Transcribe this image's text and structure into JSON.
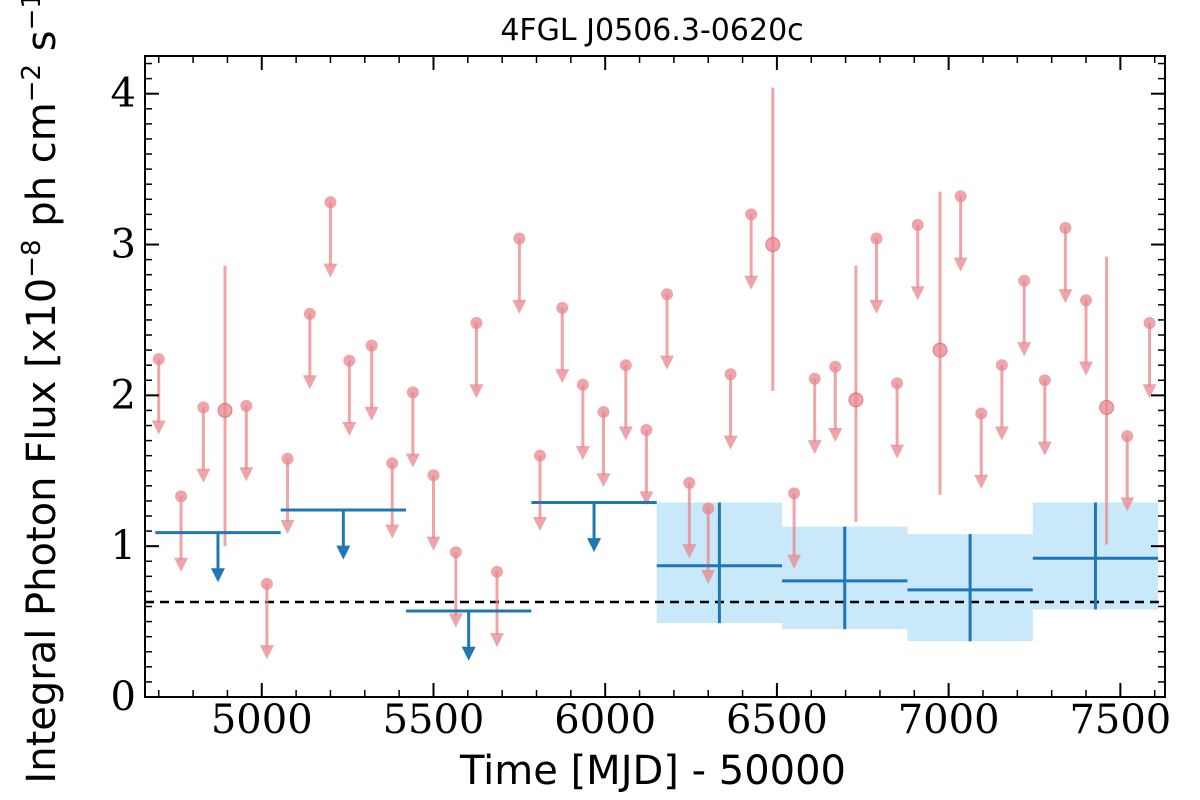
{
  "chart_data": {
    "type": "scatter",
    "title": "4FGL J0506.3-0620c",
    "xlabel": "Time [MJD] - 50000",
    "ylabel": "Integral Photon Flux [x10^-8 ph cm^-2 s^-1]",
    "ylabel_parts": {
      "main": "Integral Photon Flux [x10",
      "exp1": "−8",
      "mid": " ph cm",
      "exp2": "−2",
      "unit_s": " s",
      "exp3": "−1",
      "end": "]"
    },
    "xlim": [
      4660,
      7630
    ],
    "ylim": [
      0,
      4.25
    ],
    "xticks": [
      5000,
      5500,
      6000,
      6500,
      7000,
      7500
    ],
    "xtick_labels": [
      "5000",
      "5500",
      "6000",
      "6500",
      "7000",
      "7500"
    ],
    "yticks": [
      0,
      1,
      2,
      3,
      4
    ],
    "ytick_labels": [
      "0",
      "1",
      "2",
      "3",
      "4"
    ],
    "grid": false,
    "reference_line": {
      "y": 0.63,
      "style": "dashed",
      "color": "#000000"
    },
    "colors": {
      "short_bins": "#e8878c",
      "long_bins": "#1f77b4",
      "band": "#c9e8fa"
    },
    "short_bin_upper_limits": [
      {
        "x": 4700,
        "y": 2.24
      },
      {
        "x": 4765,
        "y": 1.33
      },
      {
        "x": 4830,
        "y": 1.92
      },
      {
        "x": 4955,
        "y": 1.93
      },
      {
        "x": 5015,
        "y": 0.75
      },
      {
        "x": 5075,
        "y": 1.58
      },
      {
        "x": 5140,
        "y": 2.54
      },
      {
        "x": 5200,
        "y": 3.28
      },
      {
        "x": 5255,
        "y": 2.23
      },
      {
        "x": 5320,
        "y": 2.33
      },
      {
        "x": 5380,
        "y": 1.55
      },
      {
        "x": 5440,
        "y": 2.02
      },
      {
        "x": 5500,
        "y": 1.47
      },
      {
        "x": 5565,
        "y": 0.96
      },
      {
        "x": 5625,
        "y": 2.48
      },
      {
        "x": 5685,
        "y": 0.83
      },
      {
        "x": 5750,
        "y": 3.04
      },
      {
        "x": 5810,
        "y": 1.6
      },
      {
        "x": 5875,
        "y": 2.58
      },
      {
        "x": 5935,
        "y": 2.07
      },
      {
        "x": 5995,
        "y": 1.89
      },
      {
        "x": 6060,
        "y": 2.2
      },
      {
        "x": 6120,
        "y": 1.77
      },
      {
        "x": 6180,
        "y": 2.67
      },
      {
        "x": 6245,
        "y": 1.42
      },
      {
        "x": 6300,
        "y": 1.25
      },
      {
        "x": 6365,
        "y": 2.14
      },
      {
        "x": 6425,
        "y": 3.2
      },
      {
        "x": 6550,
        "y": 1.35
      },
      {
        "x": 6610,
        "y": 2.11
      },
      {
        "x": 6670,
        "y": 2.19
      },
      {
        "x": 6790,
        "y": 3.04
      },
      {
        "x": 6850,
        "y": 2.08
      },
      {
        "x": 6910,
        "y": 3.13
      },
      {
        "x": 7035,
        "y": 3.32
      },
      {
        "x": 7095,
        "y": 1.88
      },
      {
        "x": 7155,
        "y": 2.2
      },
      {
        "x": 7220,
        "y": 2.76
      },
      {
        "x": 7280,
        "y": 2.1
      },
      {
        "x": 7340,
        "y": 3.11
      },
      {
        "x": 7400,
        "y": 2.63
      },
      {
        "x": 7520,
        "y": 1.73
      },
      {
        "x": 7585,
        "y": 2.48
      }
    ],
    "short_bin_detections": [
      {
        "x": 4893,
        "y": 1.9,
        "ylo": 1.0,
        "yhi": 2.86
      },
      {
        "x": 6488,
        "y": 3.0,
        "ylo": 2.03,
        "yhi": 4.04
      },
      {
        "x": 6730,
        "y": 1.97,
        "ylo": 1.16,
        "yhi": 2.86
      },
      {
        "x": 6975,
        "y": 2.3,
        "ylo": 1.34,
        "yhi": 3.35
      },
      {
        "x": 7460,
        "y": 1.92,
        "ylo": 1.01,
        "yhi": 2.92
      }
    ],
    "long_bin_upper_limits": [
      {
        "x0": 4690,
        "x1": 5055,
        "y": 1.09
      },
      {
        "x0": 5055,
        "x1": 5420,
        "y": 1.24
      },
      {
        "x0": 5420,
        "x1": 5785,
        "y": 0.57
      },
      {
        "x0": 5785,
        "x1": 6150,
        "y": 1.29
      }
    ],
    "long_bin_detections": [
      {
        "x0": 6150,
        "x1": 6515,
        "y": 0.87,
        "ylo": 0.49,
        "yhi": 1.29
      },
      {
        "x0": 6515,
        "x1": 6880,
        "y": 0.77,
        "ylo": 0.45,
        "yhi": 1.13
      },
      {
        "x0": 6880,
        "x1": 7245,
        "y": 0.71,
        "ylo": 0.37,
        "yhi": 1.08
      },
      {
        "x0": 7245,
        "x1": 7610,
        "y": 0.92,
        "ylo": 0.58,
        "yhi": 1.29
      }
    ]
  }
}
